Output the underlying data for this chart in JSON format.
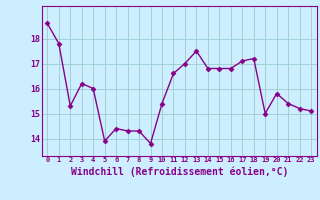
{
  "x": [
    0,
    1,
    2,
    3,
    4,
    5,
    6,
    7,
    8,
    9,
    10,
    11,
    12,
    13,
    14,
    15,
    16,
    17,
    18,
    19,
    20,
    21,
    22,
    23
  ],
  "y": [
    18.6,
    17.8,
    15.3,
    16.2,
    16.0,
    13.9,
    14.4,
    14.3,
    14.3,
    13.8,
    15.4,
    16.6,
    17.0,
    17.5,
    16.8,
    16.8,
    16.8,
    17.1,
    17.2,
    15.0,
    15.8,
    15.4,
    15.2,
    15.1
  ],
  "line_color": "#880088",
  "marker": "D",
  "marker_size": 2.5,
  "linewidth": 1.0,
  "bg_color": "#cceeff",
  "grid_color": "#99cccc",
  "xlabel": "Windchill (Refroidissement éolien,°C)",
  "xlabel_fontsize": 7,
  "xtick_labels": [
    "0",
    "1",
    "2",
    "3",
    "4",
    "5",
    "6",
    "7",
    "8",
    "9",
    "10",
    "11",
    "12",
    "13",
    "14",
    "15",
    "16",
    "17",
    "18",
    "19",
    "20",
    "21",
    "22",
    "23"
  ],
  "ytick_labels": [
    "14",
    "15",
    "16",
    "17",
    "18"
  ],
  "yticks": [
    14,
    15,
    16,
    17,
    18
  ],
  "ylim": [
    13.3,
    19.3
  ],
  "xlim": [
    -0.5,
    23.5
  ]
}
